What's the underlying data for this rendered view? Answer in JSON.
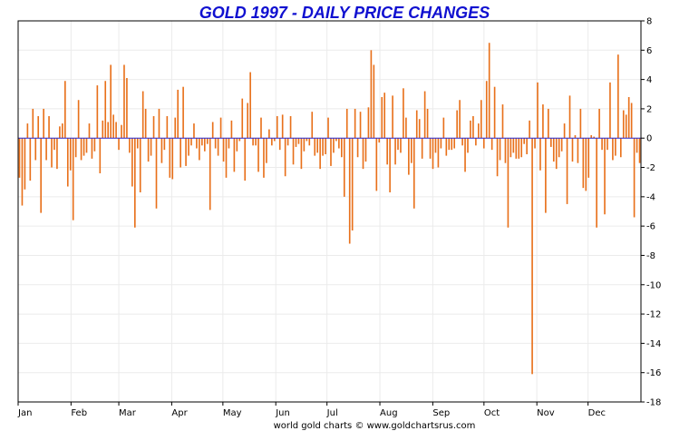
{
  "chart_data": {
    "type": "bar",
    "title": "GOLD 1997 - DAILY PRICE CHANGES",
    "xlabel": "",
    "ylabel": "",
    "ylim": [
      -18,
      8
    ],
    "y_ticks": [
      8,
      6,
      4,
      2,
      0,
      -2,
      -4,
      -6,
      -8,
      -10,
      -12,
      -14,
      -16,
      -18
    ],
    "x_tick_labels": [
      "Jan",
      "Feb",
      "Mar",
      "Apr",
      "May",
      "Jun",
      "Jul",
      "Aug",
      "Sep",
      "Oct",
      "Nov",
      "Dec"
    ],
    "grid": true,
    "legend": "none",
    "series": [
      {
        "values": [
          -2.7,
          -4.6,
          -3.5,
          1.0,
          -2.9,
          2.0,
          -1.5,
          1.5,
          -5.1,
          2.0,
          -1.5,
          1.5,
          -2.0,
          -0.8,
          -2.1,
          0.8,
          1.0,
          3.9,
          -3.3,
          -2.2,
          -5.6,
          -1.3,
          2.6,
          -1.5,
          -1.2,
          -1.0,
          1.0,
          -1.4,
          -0.9,
          3.6,
          -2.4,
          1.2,
          3.9,
          1.1,
          5.0,
          1.6,
          1.1,
          -0.8,
          0.9,
          5.0,
          4.1,
          -1.0,
          -3.3,
          -6.1,
          -0.7,
          -3.7,
          3.2,
          2.0,
          -1.6,
          -1.2,
          1.5,
          -4.8,
          2.0,
          -1.7,
          -0.8,
          1.5,
          -2.7,
          -2.8,
          1.4,
          3.3,
          -2.0,
          3.5,
          -1.9,
          -1.2,
          -0.5,
          1.0,
          -0.7,
          -1.5,
          -0.5,
          -0.9,
          -0.4,
          -4.9,
          1.1,
          -0.7,
          -1.2,
          1.4,
          -1.6,
          -2.7,
          -0.7,
          1.2,
          -2.3,
          -0.9,
          -0.2,
          2.7,
          -2.9,
          2.4,
          4.5,
          -0.5,
          -0.5,
          -2.3,
          1.4,
          -2.7,
          -1.7,
          0.6,
          -0.5,
          -0.2,
          1.5,
          -0.8,
          1.6,
          -2.6,
          -0.5,
          1.5,
          -1.8,
          -0.6,
          -0.4,
          -2.1,
          -0.9,
          -0.2,
          -0.5,
          1.8,
          -1.2,
          -1.0,
          -2.1,
          -1.2,
          -1.1,
          1.4,
          -1.9,
          -1.0,
          -0.2,
          -0.7,
          -1.3,
          -4.0,
          2.0,
          -7.2,
          -6.3,
          2.0,
          -1.3,
          1.8,
          -2.1,
          -1.6,
          2.1,
          6.0,
          5.0,
          -3.6,
          -0.3,
          2.8,
          3.1,
          -1.8,
          -3.7,
          2.9,
          -1.8,
          -0.8,
          -1.0,
          3.4,
          1.4,
          -2.5,
          -1.7,
          -4.8,
          1.9,
          1.3,
          -1.4,
          3.2,
          2.0,
          -1.4,
          -2.1,
          -1.0,
          -2.0,
          -0.7,
          1.4,
          -1.2,
          -0.8,
          -0.8,
          -0.7,
          1.9,
          2.6,
          -0.5,
          -2.3,
          -1.0,
          1.2,
          1.5,
          -0.5,
          1.0,
          2.6,
          -0.7,
          3.9,
          6.5,
          -0.8,
          3.5,
          -2.6,
          -1.5,
          2.3,
          -1.7,
          -6.1,
          -1.3,
          -1.0,
          -1.4,
          -1.4,
          -1.3,
          -0.4,
          -1.1,
          1.2,
          -16.1,
          -0.7,
          3.8,
          -2.2,
          2.3,
          -5.1,
          2.0,
          -0.6,
          -1.6,
          -2.1,
          -1.3,
          -0.9,
          1.0,
          -4.5,
          2.9,
          -1.6,
          0.2,
          -1.7,
          2.0,
          -3.4,
          -3.6,
          -2.7,
          0.2,
          0.1,
          -6.1,
          2.0,
          -0.8,
          -5.2,
          -0.8,
          3.8,
          -1.5,
          -1.2,
          5.7,
          -1.3,
          1.9,
          1.6,
          2.8,
          2.4,
          -5.4,
          -1.0,
          -1.7
        ]
      }
    ],
    "colors": {
      "bar": "#e8701a",
      "zero_line": "#2a2ad0",
      "grid": "#ebebeb",
      "title": "#1010d0"
    }
  },
  "footer": {
    "source": "world gold charts © www.goldchartsrus.com"
  }
}
